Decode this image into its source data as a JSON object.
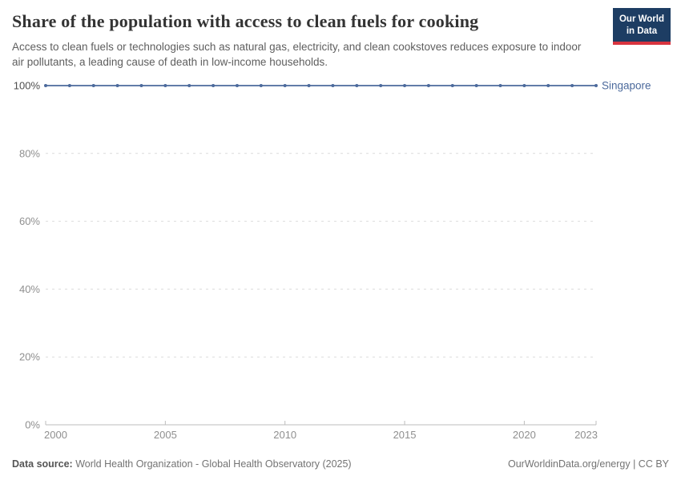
{
  "header": {
    "title": "Share of the population with access to clean fuels for cooking",
    "subtitle": "Access to clean fuels or technologies such as natural gas, electricity, and clean cookstoves reduces exposure to indoor air pollutants, a leading cause of death in low-income households.",
    "logo": {
      "line1": "Our World",
      "line2": "in Data"
    }
  },
  "chart_data": {
    "type": "line",
    "title": "Share of the population with access to clean fuels for cooking",
    "x": [
      2000,
      2001,
      2002,
      2003,
      2004,
      2005,
      2006,
      2007,
      2008,
      2009,
      2010,
      2011,
      2012,
      2013,
      2014,
      2015,
      2016,
      2017,
      2018,
      2019,
      2020,
      2021,
      2022,
      2023
    ],
    "series": [
      {
        "name": "Singapore",
        "color": "#4c6a9c",
        "values": [
          100,
          100,
          100,
          100,
          100,
          100,
          100,
          100,
          100,
          100,
          100,
          100,
          100,
          100,
          100,
          100,
          100,
          100,
          100,
          100,
          100,
          100,
          100,
          100
        ]
      }
    ],
    "xlabel": "",
    "ylabel": "",
    "xlim": [
      2000,
      2023
    ],
    "ylim": [
      0,
      100
    ],
    "xticks": [
      2000,
      2005,
      2010,
      2015,
      2020,
      2023
    ],
    "yticks": [
      0,
      20,
      40,
      60,
      80,
      100
    ],
    "ytick_suffix": "%",
    "grid": "horizontal-dashed",
    "legend": "line-end-label",
    "markers": true
  },
  "footer": {
    "datasource_label": "Data source:",
    "datasource_text": "World Health Organization - Global Health Observatory (2025)",
    "rights_text": "OurWorldinData.org/energy | CC BY"
  },
  "colors": {
    "series_blue": "#4c6a9c",
    "grid": "#dcdcdc",
    "axis": "#bdbdbd",
    "tick_label": "#8f8f8f",
    "tick_label_emphasis": "#4e4e4e",
    "logo_bg": "#1d3d63",
    "logo_red": "#d8343f",
    "title_text": "#333333",
    "subtitle_text": "#5e5e5e",
    "footer_text": "#737373"
  }
}
